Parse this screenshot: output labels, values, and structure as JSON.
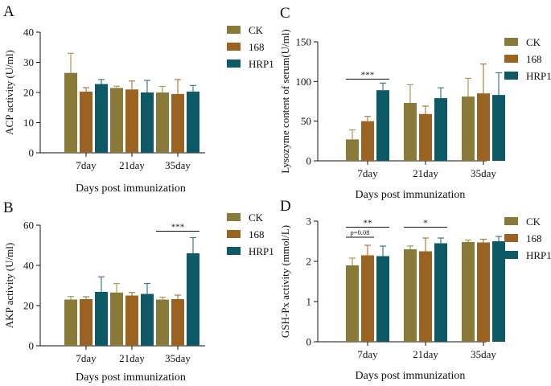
{
  "figure": {
    "colors": {
      "CK": "#8a7a3a",
      "168": "#9a6322",
      "HRP1": "#0d5a66",
      "axis": "#111111",
      "err_CK": "#a89a5c",
      "err_168": "#b07a42",
      "err_HRP1": "#3a7c86"
    }
  },
  "chart_data": [
    {
      "panel": "A",
      "type": "bar",
      "title": "",
      "ylabel": "ACP activity (U/ml)",
      "xlabel": "Days post immunization",
      "categories": [
        "7day",
        "21day",
        "35day"
      ],
      "ylim": [
        0,
        40
      ],
      "yticks": [
        0,
        10,
        20,
        30,
        40
      ],
      "legend_position": "right",
      "series": [
        {
          "name": "CK",
          "values": [
            26.5,
            21.5,
            20
          ],
          "errors": [
            6.5,
            0.6,
            2
          ]
        },
        {
          "name": "168",
          "values": [
            20.3,
            21,
            19.5
          ],
          "errors": [
            1.3,
            2.8,
            4.8
          ]
        },
        {
          "name": "HRP1",
          "values": [
            22.8,
            20,
            20.3
          ],
          "errors": [
            1.5,
            4,
            2
          ]
        }
      ],
      "annotations": []
    },
    {
      "panel": "B",
      "type": "bar",
      "title": "",
      "ylabel": "AKP activity (U/ml)",
      "xlabel": "Days post immunization",
      "categories": [
        "7day",
        "21day",
        "35day"
      ],
      "ylim": [
        0,
        60
      ],
      "yticks": [
        0,
        20,
        40,
        60
      ],
      "legend_position": "right",
      "series": [
        {
          "name": "CK",
          "values": [
            23,
            26.5,
            23
          ],
          "errors": [
            1.5,
            4.5,
            1.2
          ]
        },
        {
          "name": "168",
          "values": [
            23.2,
            25,
            23.2
          ],
          "errors": [
            1.2,
            1.5,
            2
          ]
        },
        {
          "name": "HRP1",
          "values": [
            26.8,
            25.8,
            46
          ],
          "errors": [
            7.5,
            5.2,
            7.8
          ]
        }
      ],
      "annotations": [
        {
          "text": "***",
          "category": 2,
          "from": "CK",
          "to": "HRP1",
          "y": 57
        }
      ]
    },
    {
      "panel": "C",
      "type": "bar",
      "title": "",
      "ylabel": "Lysozyme content of serum(U/ml)",
      "xlabel": "Days post immunization",
      "categories": [
        "7day",
        "21day",
        "35day"
      ],
      "ylim": [
        0,
        150
      ],
      "yticks": [
        0,
        50,
        100,
        150
      ],
      "legend_position": "right",
      "series": [
        {
          "name": "CK",
          "values": [
            27,
            73,
            81
          ],
          "errors": [
            12,
            23,
            23
          ]
        },
        {
          "name": "168",
          "values": [
            50,
            59,
            85
          ],
          "errors": [
            6,
            10,
            37
          ]
        },
        {
          "name": "HRP1",
          "values": [
            89,
            79,
            83
          ],
          "errors": [
            9,
            13,
            28
          ]
        }
      ],
      "annotations": [
        {
          "text": "***",
          "category": 0,
          "from": "CK",
          "to": "HRP1",
          "y": 103
        }
      ]
    },
    {
      "panel": "D",
      "type": "bar",
      "title": "",
      "ylabel": "GSH-Px activity  (mmol/L)",
      "xlabel": "Days post immunization",
      "categories": [
        "7day",
        "21day",
        "35day"
      ],
      "ylim": [
        0,
        3
      ],
      "yticks": [
        0,
        1,
        2,
        3
      ],
      "legend_position": "right",
      "series": [
        {
          "name": "CK",
          "values": [
            1.9,
            2.3,
            2.48
          ],
          "errors": [
            0.18,
            0.08,
            0.05
          ]
        },
        {
          "name": "168",
          "values": [
            2.15,
            2.25,
            2.47
          ],
          "errors": [
            0.25,
            0.33,
            0.08
          ]
        },
        {
          "name": "HRP1",
          "values": [
            2.13,
            2.45,
            2.5
          ],
          "errors": [
            0.25,
            0.13,
            0.12
          ]
        }
      ],
      "annotations": [
        {
          "text": "**",
          "category": 0,
          "from": "CK",
          "to": "HRP1",
          "y": 2.85
        },
        {
          "text": "p=0.08",
          "category": 0,
          "from": "CK",
          "to": "168",
          "y": 2.6,
          "small": true
        },
        {
          "text": "*",
          "category": 1,
          "from": "CK",
          "to": "HRP1",
          "y": 2.85
        }
      ]
    }
  ]
}
